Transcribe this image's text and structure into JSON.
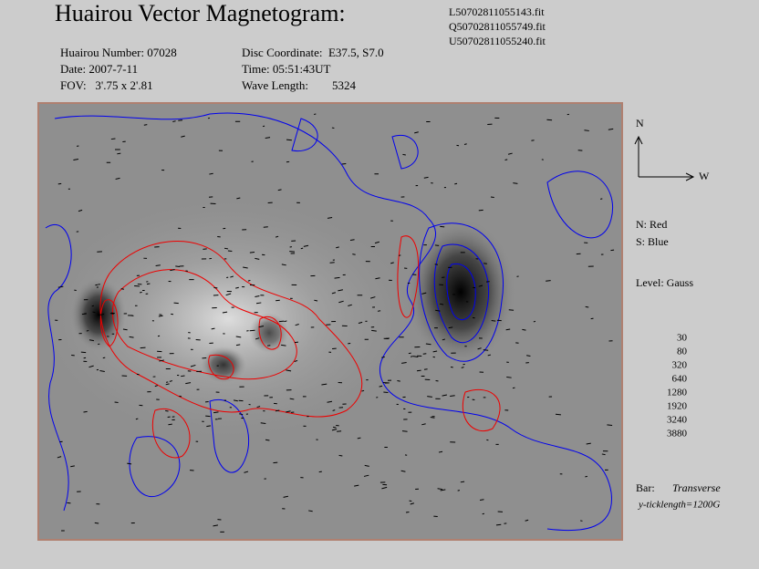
{
  "header": {
    "title": "Huairou Vector Magnetogram:",
    "files": [
      "L50702811055143.fit",
      "Q50702811055749.fit",
      "U50702811055240.fit"
    ]
  },
  "info": {
    "left": [
      "Huairou Number: 07028",
      "Date: 2007-7-11",
      "FOV:   3'.75 x 2'.81"
    ],
    "right": [
      "Disc Coordinate:  E37.5, S7.0",
      "Time: 05:51:43UT",
      "Wave Length:        5324"
    ]
  },
  "compass": {
    "north": "N",
    "west": "W"
  },
  "legend": {
    "polarity": [
      "N: Red",
      "S: Blue"
    ],
    "level_title": "Level: Gauss",
    "levels": [
      30,
      80,
      320,
      640,
      1280,
      1920,
      3240,
      3880
    ],
    "bar_label": "Bar:",
    "bar_type": "Transverse",
    "ticklength": "y-ticklength=1200G"
  }
}
